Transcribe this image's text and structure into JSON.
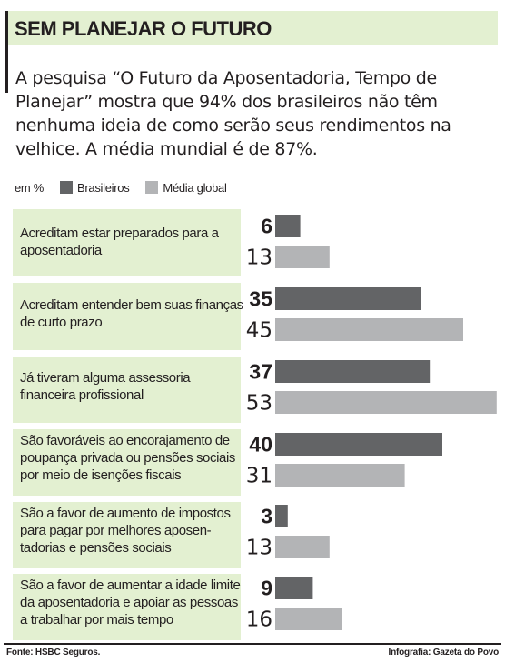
{
  "header": {
    "title": "SEM PLANEJAR O FUTURO",
    "lead": "A pesquisa “O Futuro da Aposentadoria, Tempo de Planejar” mostra que 94% dos brasileiros não têm nenhuma ideia de como  serão seus rendimentos na velhice. A média mundial é de 87%."
  },
  "legend": {
    "unit": "em %",
    "items": [
      {
        "label": "Brasileiros",
        "color": "#636466"
      },
      {
        "label": "Média global",
        "color": "#b3b4b6"
      }
    ]
  },
  "chart_data": {
    "type": "bar",
    "orientation": "horizontal",
    "categories": [
      "Acreditam estar preparados para a aposentadoria",
      "Acreditam entender bem suas finanças de curto prazo",
      "Já tiveram alguma assessoria financeira profissional",
      "São favoráveis ao encorajamento de poupança privada ou pensões sociais por meio de isenções fiscais",
      "São a favor de aumento de impostos para pagar por melhores aposen-tadorias e pensões sociais",
      "São a favor de aumentar a idade limite da aposentadoria e apoiar as pessoas a trabalhar por mais tempo"
    ],
    "series": [
      {
        "name": "Brasileiros",
        "color": "#636466",
        "values": [
          6,
          35,
          37,
          40,
          3,
          9
        ]
      },
      {
        "name": "Média global",
        "color": "#b3b4b6",
        "values": [
          13,
          45,
          53,
          31,
          13,
          16
        ]
      }
    ],
    "unit": "em %"
  },
  "footer": {
    "source": "Fonte: HSBC Seguros.",
    "credit": "Infografia: Gazeta do Povo"
  }
}
